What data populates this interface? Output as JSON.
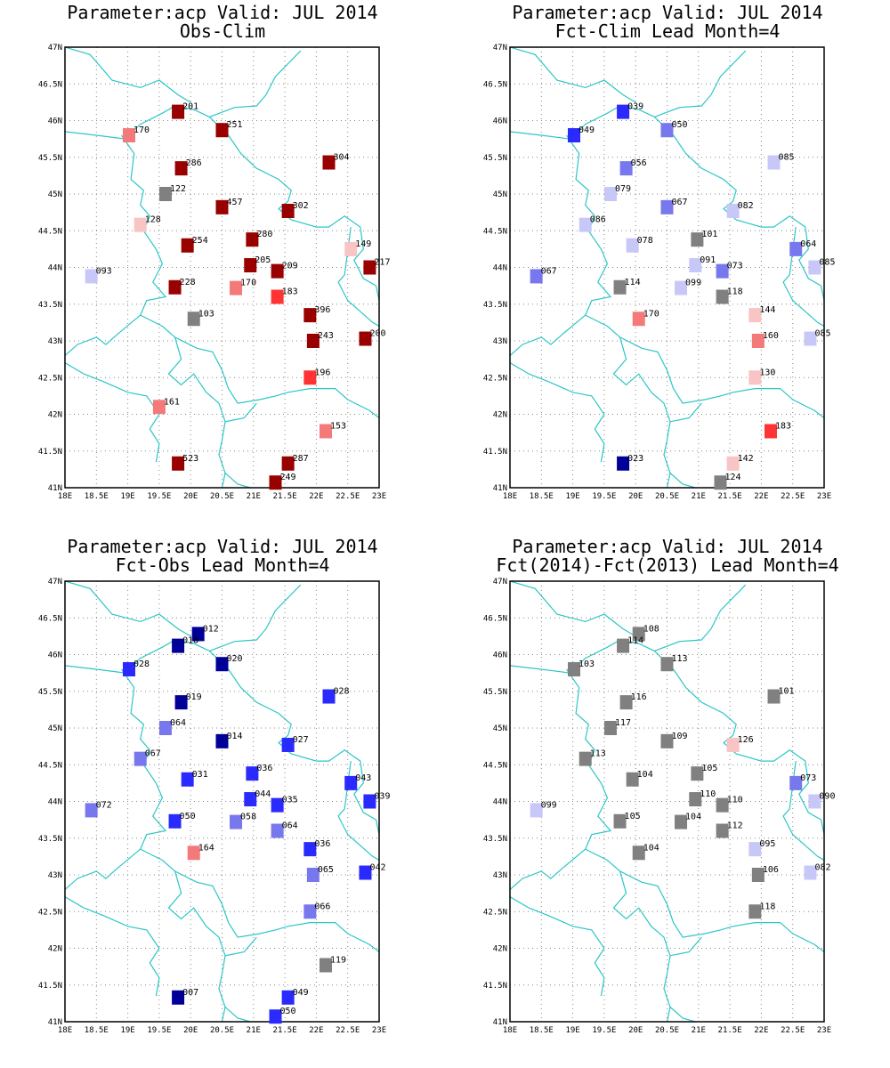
{
  "map": {
    "lon_ticks": [
      "18E",
      "18.5E",
      "19E",
      "19.5E",
      "20E",
      "20.5E",
      "21E",
      "21.5E",
      "22E",
      "22.5E",
      "23E"
    ],
    "lat_ticks": [
      "41N",
      "41.5N",
      "42N",
      "42.5N",
      "43N",
      "43.5N",
      "44N",
      "44.5N",
      "45N",
      "45.5N",
      "46N",
      "46.5N",
      "47N"
    ],
    "lon_range": [
      18,
      23
    ],
    "lat_range": [
      41,
      47
    ],
    "grid": true,
    "border_color": "#2cc6c6"
  },
  "colors": {
    "dark_red": "#990000",
    "red": "#ff3333",
    "light_red": "#f47a7a",
    "pale_red": "#f9c4c4",
    "gray": "#808080",
    "pale_blue": "#c8c8f8",
    "light_blue": "#7878ee",
    "blue": "#2a2aff",
    "dark_blue": "#000099"
  },
  "panels": [
    {
      "title": "Parameter:acp Valid: JUL 2014",
      "subtitle": "Obs-Clim",
      "stations": [
        {
          "lon": 19.8,
          "lat": 46.12,
          "label": "201",
          "color": "dark_red"
        },
        {
          "lon": 20.5,
          "lat": 45.87,
          "label": "251",
          "color": "dark_red"
        },
        {
          "lon": 19.02,
          "lat": 45.8,
          "label": "170",
          "color": "light_red"
        },
        {
          "lon": 19.85,
          "lat": 45.35,
          "label": "286",
          "color": "dark_red"
        },
        {
          "lon": 22.2,
          "lat": 45.43,
          "label": "304",
          "color": "dark_red"
        },
        {
          "lon": 19.6,
          "lat": 45.0,
          "label": "122",
          "color": "gray"
        },
        {
          "lon": 20.5,
          "lat": 44.82,
          "label": "457",
          "color": "dark_red"
        },
        {
          "lon": 21.55,
          "lat": 44.77,
          "label": "302",
          "color": "dark_red"
        },
        {
          "lon": 19.2,
          "lat": 44.58,
          "label": "128",
          "color": "pale_red"
        },
        {
          "lon": 20.98,
          "lat": 44.38,
          "label": "280",
          "color": "dark_red"
        },
        {
          "lon": 19.95,
          "lat": 44.3,
          "label": "254",
          "color": "dark_red"
        },
        {
          "lon": 22.55,
          "lat": 44.25,
          "label": "149",
          "color": "pale_red"
        },
        {
          "lon": 20.95,
          "lat": 44.03,
          "label": "205",
          "color": "dark_red"
        },
        {
          "lon": 21.38,
          "lat": 43.95,
          "label": "209",
          "color": "dark_red"
        },
        {
          "lon": 22.85,
          "lat": 44.0,
          "label": "217",
          "color": "dark_red"
        },
        {
          "lon": 18.42,
          "lat": 43.88,
          "label": "093",
          "color": "pale_blue"
        },
        {
          "lon": 19.75,
          "lat": 43.73,
          "label": "228",
          "color": "dark_red"
        },
        {
          "lon": 20.72,
          "lat": 43.72,
          "label": "170",
          "color": "light_red"
        },
        {
          "lon": 21.38,
          "lat": 43.6,
          "label": "183",
          "color": "red"
        },
        {
          "lon": 20.05,
          "lat": 43.3,
          "label": "103",
          "color": "gray"
        },
        {
          "lon": 21.9,
          "lat": 43.35,
          "label": "396",
          "color": "dark_red"
        },
        {
          "lon": 21.95,
          "lat": 43.0,
          "label": "243",
          "color": "dark_red"
        },
        {
          "lon": 22.78,
          "lat": 43.03,
          "label": "200",
          "color": "dark_red"
        },
        {
          "lon": 21.9,
          "lat": 42.5,
          "label": "196",
          "color": "red"
        },
        {
          "lon": 19.5,
          "lat": 42.1,
          "label": "161",
          "color": "light_red"
        },
        {
          "lon": 22.15,
          "lat": 41.77,
          "label": "153",
          "color": "light_red"
        },
        {
          "lon": 19.8,
          "lat": 41.33,
          "label": "523",
          "color": "dark_red"
        },
        {
          "lon": 21.55,
          "lat": 41.33,
          "label": "287",
          "color": "dark_red"
        },
        {
          "lon": 21.35,
          "lat": 41.07,
          "label": "249",
          "color": "dark_red"
        }
      ]
    },
    {
      "title": "Parameter:acp Valid: JUL 2014",
      "subtitle": "Fct-Clim Lead Month=4",
      "stations": [
        {
          "lon": 19.8,
          "lat": 46.12,
          "label": "039",
          "color": "blue"
        },
        {
          "lon": 20.5,
          "lat": 45.87,
          "label": "050",
          "color": "light_blue"
        },
        {
          "lon": 19.02,
          "lat": 45.8,
          "label": "049",
          "color": "blue"
        },
        {
          "lon": 19.85,
          "lat": 45.35,
          "label": "056",
          "color": "light_blue"
        },
        {
          "lon": 22.2,
          "lat": 45.43,
          "label": "085",
          "color": "pale_blue"
        },
        {
          "lon": 19.6,
          "lat": 45.0,
          "label": "079",
          "color": "pale_blue"
        },
        {
          "lon": 20.5,
          "lat": 44.82,
          "label": "067",
          "color": "light_blue"
        },
        {
          "lon": 21.55,
          "lat": 44.77,
          "label": "082",
          "color": "pale_blue"
        },
        {
          "lon": 19.2,
          "lat": 44.58,
          "label": "086",
          "color": "pale_blue"
        },
        {
          "lon": 20.98,
          "lat": 44.38,
          "label": "101",
          "color": "gray"
        },
        {
          "lon": 19.95,
          "lat": 44.3,
          "label": "078",
          "color": "pale_blue"
        },
        {
          "lon": 22.55,
          "lat": 44.25,
          "label": "064",
          "color": "light_blue"
        },
        {
          "lon": 20.95,
          "lat": 44.03,
          "label": "091",
          "color": "pale_blue"
        },
        {
          "lon": 21.38,
          "lat": 43.95,
          "label": "073",
          "color": "light_blue"
        },
        {
          "lon": 22.85,
          "lat": 44.0,
          "label": "085",
          "color": "pale_blue"
        },
        {
          "lon": 18.42,
          "lat": 43.88,
          "label": "067",
          "color": "light_blue"
        },
        {
          "lon": 19.75,
          "lat": 43.73,
          "label": "114",
          "color": "gray"
        },
        {
          "lon": 20.72,
          "lat": 43.72,
          "label": "099",
          "color": "pale_blue"
        },
        {
          "lon": 21.38,
          "lat": 43.6,
          "label": "118",
          "color": "gray"
        },
        {
          "lon": 20.05,
          "lat": 43.3,
          "label": "170",
          "color": "light_red"
        },
        {
          "lon": 21.9,
          "lat": 43.35,
          "label": "144",
          "color": "pale_red"
        },
        {
          "lon": 21.95,
          "lat": 43.0,
          "label": "160",
          "color": "light_red"
        },
        {
          "lon": 22.78,
          "lat": 43.03,
          "label": "085",
          "color": "pale_blue"
        },
        {
          "lon": 21.9,
          "lat": 42.5,
          "label": "130",
          "color": "pale_red"
        },
        {
          "lon": 22.15,
          "lat": 41.77,
          "label": "183",
          "color": "red"
        },
        {
          "lon": 19.8,
          "lat": 41.33,
          "label": "023",
          "color": "dark_blue"
        },
        {
          "lon": 21.55,
          "lat": 41.33,
          "label": "142",
          "color": "pale_red"
        },
        {
          "lon": 21.35,
          "lat": 41.07,
          "label": "124",
          "color": "gray"
        }
      ]
    },
    {
      "title": "Parameter:acp Valid: JUL 2014",
      "subtitle": "Fct-Obs Lead Month=4",
      "stations": [
        {
          "lon": 20.12,
          "lat": 46.28,
          "label": "012",
          "color": "dark_blue"
        },
        {
          "lon": 19.8,
          "lat": 46.12,
          "label": "018",
          "color": "dark_blue"
        },
        {
          "lon": 20.5,
          "lat": 45.87,
          "label": "020",
          "color": "dark_blue"
        },
        {
          "lon": 19.02,
          "lat": 45.8,
          "label": "028",
          "color": "blue"
        },
        {
          "lon": 19.85,
          "lat": 45.35,
          "label": "019",
          "color": "dark_blue"
        },
        {
          "lon": 22.2,
          "lat": 45.43,
          "label": "028",
          "color": "blue"
        },
        {
          "lon": 19.6,
          "lat": 45.0,
          "label": "064",
          "color": "light_blue"
        },
        {
          "lon": 20.5,
          "lat": 44.82,
          "label": "014",
          "color": "dark_blue"
        },
        {
          "lon": 21.55,
          "lat": 44.77,
          "label": "027",
          "color": "blue"
        },
        {
          "lon": 19.2,
          "lat": 44.58,
          "label": "067",
          "color": "light_blue"
        },
        {
          "lon": 20.98,
          "lat": 44.38,
          "label": "036",
          "color": "blue"
        },
        {
          "lon": 19.95,
          "lat": 44.3,
          "label": "031",
          "color": "blue"
        },
        {
          "lon": 22.55,
          "lat": 44.25,
          "label": "043",
          "color": "blue"
        },
        {
          "lon": 20.95,
          "lat": 44.03,
          "label": "044",
          "color": "blue"
        },
        {
          "lon": 21.38,
          "lat": 43.95,
          "label": "035",
          "color": "blue"
        },
        {
          "lon": 22.85,
          "lat": 44.0,
          "label": "039",
          "color": "blue"
        },
        {
          "lon": 18.42,
          "lat": 43.88,
          "label": "072",
          "color": "light_blue"
        },
        {
          "lon": 19.75,
          "lat": 43.73,
          "label": "050",
          "color": "blue"
        },
        {
          "lon": 20.72,
          "lat": 43.72,
          "label": "058",
          "color": "light_blue"
        },
        {
          "lon": 21.38,
          "lat": 43.6,
          "label": "064",
          "color": "light_blue"
        },
        {
          "lon": 20.05,
          "lat": 43.3,
          "label": "164",
          "color": "light_red"
        },
        {
          "lon": 21.9,
          "lat": 43.35,
          "label": "036",
          "color": "blue"
        },
        {
          "lon": 21.95,
          "lat": 43.0,
          "label": "065",
          "color": "light_blue"
        },
        {
          "lon": 22.78,
          "lat": 43.03,
          "label": "042",
          "color": "blue"
        },
        {
          "lon": 21.9,
          "lat": 42.5,
          "label": "066",
          "color": "light_blue"
        },
        {
          "lon": 22.15,
          "lat": 41.77,
          "label": "119",
          "color": "gray"
        },
        {
          "lon": 19.8,
          "lat": 41.33,
          "label": "007",
          "color": "dark_blue"
        },
        {
          "lon": 21.55,
          "lat": 41.33,
          "label": "049",
          "color": "blue"
        },
        {
          "lon": 21.35,
          "lat": 41.07,
          "label": "050",
          "color": "blue"
        }
      ]
    },
    {
      "title": "Parameter:acp Valid: JUL 2014",
      "subtitle": "Fct(2014)-Fct(2013) Lead Month=4",
      "stations": [
        {
          "lon": 20.05,
          "lat": 46.28,
          "label": "108",
          "color": "gray"
        },
        {
          "lon": 19.8,
          "lat": 46.12,
          "label": "114",
          "color": "gray"
        },
        {
          "lon": 20.5,
          "lat": 45.87,
          "label": "113",
          "color": "gray"
        },
        {
          "lon": 19.02,
          "lat": 45.8,
          "label": "103",
          "color": "gray"
        },
        {
          "lon": 19.85,
          "lat": 45.35,
          "label": "116",
          "color": "gray"
        },
        {
          "lon": 22.2,
          "lat": 45.43,
          "label": "101",
          "color": "gray"
        },
        {
          "lon": 19.6,
          "lat": 45.0,
          "label": "117",
          "color": "gray"
        },
        {
          "lon": 20.5,
          "lat": 44.82,
          "label": "109",
          "color": "gray"
        },
        {
          "lon": 21.55,
          "lat": 44.77,
          "label": "126",
          "color": "pale_red"
        },
        {
          "lon": 19.2,
          "lat": 44.58,
          "label": "113",
          "color": "gray"
        },
        {
          "lon": 20.98,
          "lat": 44.38,
          "label": "105",
          "color": "gray"
        },
        {
          "lon": 19.95,
          "lat": 44.3,
          "label": "104",
          "color": "gray"
        },
        {
          "lon": 22.55,
          "lat": 44.25,
          "label": "073",
          "color": "light_blue"
        },
        {
          "lon": 20.95,
          "lat": 44.03,
          "label": "110",
          "color": "gray"
        },
        {
          "lon": 21.38,
          "lat": 43.95,
          "label": "110",
          "color": "gray"
        },
        {
          "lon": 22.85,
          "lat": 44.0,
          "label": "090",
          "color": "pale_blue"
        },
        {
          "lon": 18.42,
          "lat": 43.88,
          "label": "099",
          "color": "pale_blue"
        },
        {
          "lon": 19.75,
          "lat": 43.73,
          "label": "105",
          "color": "gray"
        },
        {
          "lon": 20.72,
          "lat": 43.72,
          "label": "104",
          "color": "gray"
        },
        {
          "lon": 21.38,
          "lat": 43.6,
          "label": "112",
          "color": "gray"
        },
        {
          "lon": 20.05,
          "lat": 43.3,
          "label": "104",
          "color": "gray"
        },
        {
          "lon": 21.9,
          "lat": 43.35,
          "label": "095",
          "color": "pale_blue"
        },
        {
          "lon": 21.95,
          "lat": 43.0,
          "label": "106",
          "color": "gray"
        },
        {
          "lon": 22.78,
          "lat": 43.03,
          "label": "082",
          "color": "pale_blue"
        },
        {
          "lon": 21.9,
          "lat": 42.5,
          "label": "118",
          "color": "gray"
        }
      ]
    }
  ]
}
